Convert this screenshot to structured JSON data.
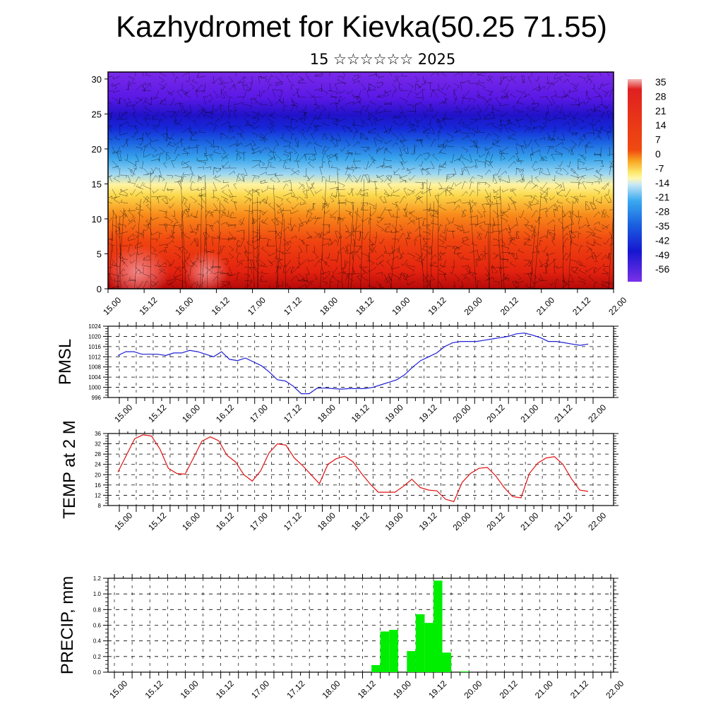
{
  "page": {
    "title": "Kazhydromet for Kievka(50.25 71.55)",
    "subtitle": "15 ☆☆☆☆☆☆ 2025"
  },
  "x_ticks": [
    "15.00",
    "15.12",
    "16.00",
    "16.12",
    "17.00",
    "17.12",
    "18.00",
    "18.12",
    "19.00",
    "19.12",
    "20.00",
    "20.12",
    "21.00",
    "21.12",
    "22.00"
  ],
  "colors": {
    "pmsl_line": "#1f1fd6",
    "temp_line": "#e01010",
    "precip_bar": "#00ee00"
  },
  "chart_data": [
    {
      "type": "heatmap",
      "name": "temperature-height-section",
      "x_ticks": [
        "15.00",
        "15.12",
        "16.00",
        "16.12",
        "17.00",
        "17.12",
        "18.00",
        "18.12",
        "19.00",
        "19.12",
        "20.00",
        "20.12",
        "21.00",
        "21.12",
        "22.00"
      ],
      "y_ticks": [
        0,
        5,
        10,
        15,
        20,
        25,
        30
      ],
      "ylim": [
        0,
        31
      ],
      "colorbar_labels": [
        "35",
        "28",
        "21",
        "14",
        "7",
        "0",
        "-7",
        "-14",
        "-21",
        "-28",
        "-35",
        "-42",
        "-49",
        "-56"
      ],
      "overlay": "wind barbs"
    },
    {
      "type": "line",
      "ylabel": "PMSL",
      "x_ticks": [
        "15.00",
        "15.12",
        "16.00",
        "16.12",
        "17.00",
        "17.12",
        "18.00",
        "18.12",
        "19.00",
        "19.12",
        "20.00",
        "20.12",
        "21.00",
        "21.12",
        "22.00"
      ],
      "y_ticks": [
        "1024",
        "1020",
        "1016",
        "1012",
        "1008",
        "1004",
        "1000",
        "996"
      ],
      "ylim": [
        996,
        1024
      ],
      "grid": true,
      "values": [
        1012.5,
        1014,
        1014,
        1013,
        1013,
        1013,
        1012.5,
        1013.5,
        1013.5,
        1014.5,
        1014,
        1013,
        1012,
        1014,
        1011,
        1010.5,
        1011.5,
        1010,
        1008.5,
        1006,
        1003,
        1002.5,
        1000.5,
        997.5,
        997.5,
        999.7,
        999.7,
        999.5,
        999.3,
        999.5,
        999.5,
        999.5,
        1000,
        1001,
        1002,
        1003,
        1005,
        1008,
        1010.5,
        1012,
        1013.5,
        1016,
        1017.5,
        1018,
        1018,
        1018,
        1018.5,
        1019,
        1019.5,
        1020,
        1021,
        1021.3,
        1020.5,
        1019.5,
        1018,
        1018,
        1017.5,
        1017,
        1016.5,
        1017
      ]
    },
    {
      "type": "line",
      "ylabel": "TEMP at 2 M",
      "x_ticks": [
        "15.00",
        "15.12",
        "16.00",
        "16.12",
        "17.00",
        "17.12",
        "18.00",
        "18.12",
        "19.00",
        "19.12",
        "20.00",
        "20.12",
        "21.00",
        "21.12",
        "22.00"
      ],
      "y_ticks": [
        "36",
        "32",
        "28",
        "24",
        "20",
        "16",
        "12",
        "8"
      ],
      "ylim": [
        8,
        36
      ],
      "grid": true,
      "values": [
        21,
        27.5,
        34,
        35.5,
        35,
        30,
        22.5,
        20.5,
        20.2,
        26.5,
        33,
        34.7,
        33.2,
        27.5,
        25,
        20,
        17.5,
        21.5,
        28.5,
        32,
        31.5,
        26.5,
        23.5,
        20,
        16.5,
        24,
        26.2,
        27.2,
        25,
        20.5,
        16.5,
        13.2,
        13.2,
        13.2,
        15.5,
        18.2,
        15,
        14,
        13.7,
        10.5,
        9.5,
        17,
        20.5,
        22.5,
        22.8,
        19.5,
        15,
        11.5,
        11,
        20.5,
        24.5,
        26.5,
        27,
        24,
        18.5,
        14,
        13.5
      ]
    },
    {
      "type": "bar",
      "ylabel": "PRECIP, mm",
      "x_ticks": [
        "15.00",
        "15.12",
        "16.00",
        "16.12",
        "17.00",
        "17.12",
        "18.00",
        "18.12",
        "19.00",
        "19.12",
        "20.00",
        "20.12",
        "21.00",
        "21.12",
        "22.00"
      ],
      "y_ticks": [
        "1.2",
        "1.0",
        "0.8",
        "0.6",
        "0.4",
        "0.2",
        "0.0"
      ],
      "ylim": [
        0,
        1.2
      ],
      "grid": true,
      "bars": [
        {
          "step": 29,
          "value": 0.09
        },
        {
          "step": 30,
          "value": 0.52
        },
        {
          "step": 31,
          "value": 0.54
        },
        {
          "step": 33,
          "value": 0.27
        },
        {
          "step": 34,
          "value": 0.74
        },
        {
          "step": 35,
          "value": 0.63
        },
        {
          "step": 36,
          "value": 1.17
        },
        {
          "step": 37,
          "value": 0.25
        },
        {
          "step": 39,
          "value": 0.01
        }
      ]
    }
  ]
}
